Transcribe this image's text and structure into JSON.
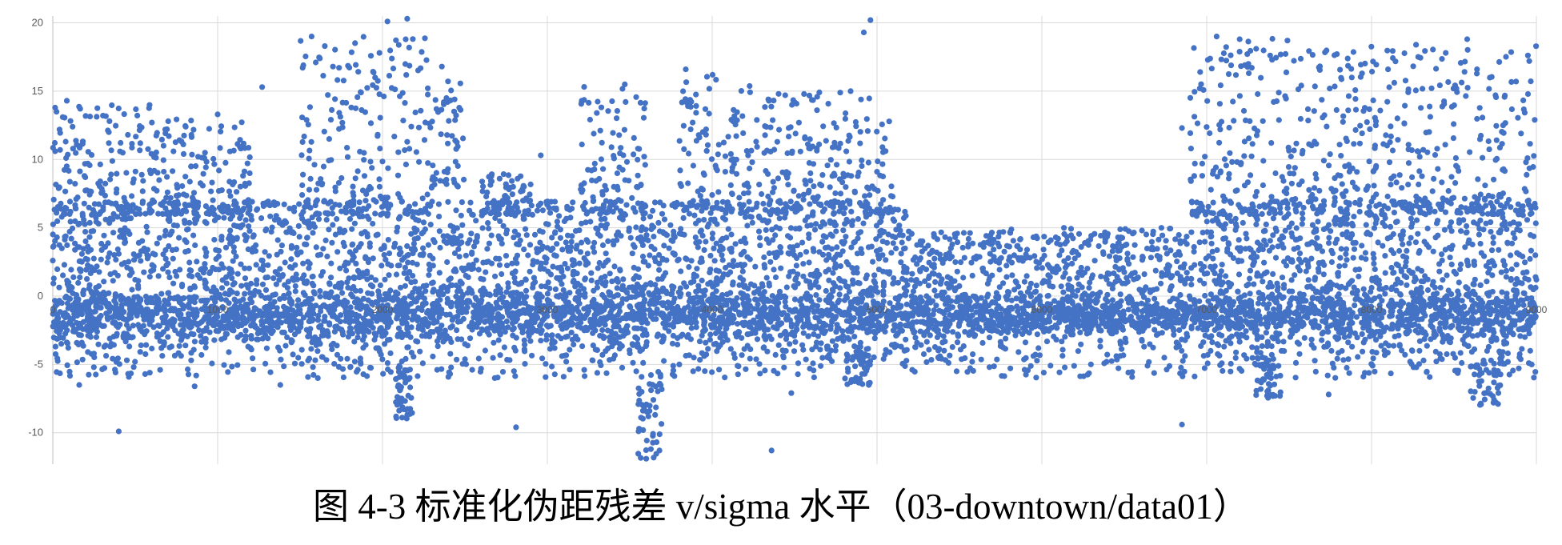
{
  "caption": "图 4-3  标准化伪距残差 v/sigma 水平（03-downtown/data01）",
  "chart_data": {
    "type": "scatter",
    "title": "",
    "xlabel": "",
    "ylabel": "",
    "xlim": [
      0,
      9000
    ],
    "ylim": [
      -12.3,
      20.5
    ],
    "y_ticks": [
      -10,
      -5,
      0,
      5,
      10,
      15,
      20
    ],
    "x_ticks": [
      0,
      1000,
      2000,
      3000,
      4000,
      5000,
      6000,
      7000,
      8000,
      9000
    ],
    "x_tick_labels": [
      "0",
      "1000",
      "2000",
      "3000",
      "4000",
      "5000",
      "6000",
      "7000",
      "8000",
      "9000"
    ],
    "grid": true,
    "legend": "none",
    "marker_color": "#4472C4",
    "point_count_note": "dense cloud of roughly 9000 epochs; mostly between -5 and 7 with excursions to about -12 and 20",
    "series": [
      {
        "values_sample": [
          [
            0,
            2.6
          ],
          [
            30,
            -1.8
          ],
          [
            60,
            13.1
          ],
          [
            85,
            14.3
          ],
          [
            120,
            12.4
          ],
          [
            160,
            -6.5
          ],
          [
            400,
            -9.9
          ],
          [
            700,
            12.8
          ],
          [
            860,
            -6.6
          ],
          [
            1000,
            13.3
          ],
          [
            1270,
            15.3
          ],
          [
            1380,
            -6.5
          ],
          [
            1520,
            16.9
          ],
          [
            1570,
            19.0
          ],
          [
            1620,
            17.4
          ],
          [
            1650,
            18.3
          ],
          [
            1870,
            14.9
          ],
          [
            2030,
            20.1
          ],
          [
            2150,
            20.3
          ],
          [
            2150,
            -8.7
          ],
          [
            2360,
            16.8
          ],
          [
            2810,
            -9.6
          ],
          [
            2960,
            10.3
          ],
          [
            3300,
            13.4
          ],
          [
            3470,
            15.5
          ],
          [
            3600,
            -11.9
          ],
          [
            3680,
            -11.3
          ],
          [
            3840,
            16.6
          ],
          [
            4360,
            -11.3
          ],
          [
            4480,
            -7.1
          ],
          [
            4840,
            15.0
          ],
          [
            4920,
            19.3
          ],
          [
            4960,
            20.2
          ],
          [
            4950,
            -6.5
          ],
          [
            5000,
            9.1
          ],
          [
            6000,
            -1.5
          ],
          [
            6850,
            -9.4
          ],
          [
            6850,
            12.3
          ],
          [
            6960,
            16.4
          ],
          [
            7060,
            19.0
          ],
          [
            7200,
            18.8
          ],
          [
            7300,
            18.1
          ],
          [
            7390,
            -6.0
          ],
          [
            7490,
            18.7
          ],
          [
            7560,
            -3.5
          ],
          [
            7740,
            -7.2
          ],
          [
            7880,
            16.0
          ],
          [
            8100,
            16.6
          ],
          [
            8270,
            18.4
          ],
          [
            8450,
            17.8
          ],
          [
            8580,
            18.8
          ],
          [
            8640,
            16.6
          ],
          [
            8740,
            -7.8
          ],
          [
            8930,
            -3.0
          ],
          [
            8990,
            12.9
          ],
          [
            9000,
            1.2
          ]
        ]
      }
    ]
  }
}
